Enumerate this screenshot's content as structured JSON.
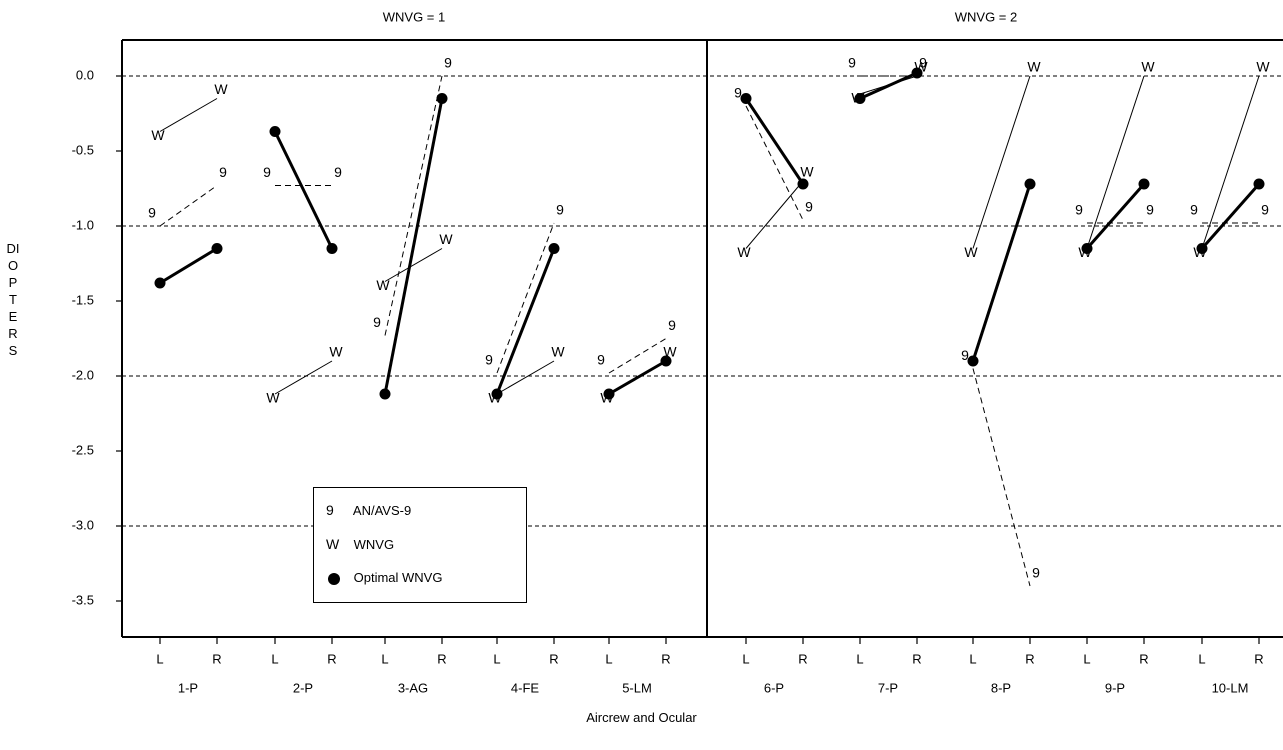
{
  "chart_data": {
    "type": "line",
    "ylabel": "DIOPTERS",
    "xlabel": "Aircrew and Ocular",
    "ylim": [
      -3.7,
      0.25
    ],
    "yticks": [
      "0.0",
      "-0.5",
      "-1.0",
      "-1.5",
      "-2.0",
      "-2.5",
      "-3.0",
      "-3.5"
    ],
    "reference_lines": [
      0.0,
      -1.0,
      -2.0,
      -3.0
    ],
    "panels": [
      {
        "title": "WNVG = 1",
        "subjects": [
          {
            "name": "1-P",
            "avs9": [
              -1.0,
              -0.73
            ],
            "wnvg": [
              -0.37,
              -0.15
            ],
            "optimal": [
              -1.38,
              -1.15
            ]
          },
          {
            "name": "2-P",
            "avs9": [
              -0.73,
              -0.73
            ],
            "wnvg": null,
            "optimal": [
              -0.37,
              -1.15
            ]
          },
          {
            "name": "3-AG",
            "avs9": [
              -1.73,
              0.0
            ],
            "wnvg": [
              -1.37,
              -1.15
            ],
            "optimal": [
              -2.12,
              -0.15
            ]
          },
          {
            "name": "4-FE",
            "avs9": [
              -1.98,
              -0.98
            ],
            "wnvg": [
              -2.12,
              -1.9
            ],
            "optimal": [
              -2.12,
              -1.15
            ]
          },
          {
            "name": "5-LM",
            "avs9": [
              -1.98,
              -1.75
            ],
            "wnvg": [
              -2.12,
              -1.9
            ],
            "optimal": [
              -2.12,
              -1.9
            ]
          }
        ],
        "extra_wnvg": [
          {
            "subject": "2-P",
            "values": [
              -2.12,
              -1.9
            ],
            "note": "W segment below 2-P/3-AG"
          }
        ]
      },
      {
        "title": "WNVG = 2",
        "subjects": [
          {
            "name": "6-P",
            "avs9": [
              -0.2,
              -0.96
            ],
            "wnvg": [
              -1.15,
              -0.7
            ],
            "optimal": [
              -0.15,
              -0.72
            ]
          },
          {
            "name": "7-P",
            "avs9": [
              0.0,
              0.0
            ],
            "wnvg": [
              -0.12,
              0.0
            ],
            "optimal": [
              -0.15,
              0.02
            ]
          },
          {
            "name": "8-P",
            "avs9": [
              -1.95,
              -3.4
            ],
            "wnvg": [
              -1.15,
              0.0
            ],
            "optimal": [
              -1.9,
              -0.72
            ]
          },
          {
            "name": "9-P",
            "avs9": [
              -0.98,
              -0.98
            ],
            "wnvg": [
              -1.15,
              0.0
            ],
            "optimal": [
              -1.15,
              -0.72
            ]
          },
          {
            "name": "10-LM",
            "avs9": [
              -0.98,
              -0.98
            ],
            "wnvg": [
              -1.15,
              0.0
            ],
            "optimal": [
              -1.15,
              -0.72
            ]
          }
        ]
      }
    ],
    "ocular_labels": [
      "L",
      "R"
    ],
    "legend": [
      {
        "symbol": "9",
        "label": "AN/AVS-9"
      },
      {
        "symbol": "W",
        "label": "WNVG"
      },
      {
        "symbol": "dot",
        "label": "Optimal WNVG"
      }
    ]
  }
}
